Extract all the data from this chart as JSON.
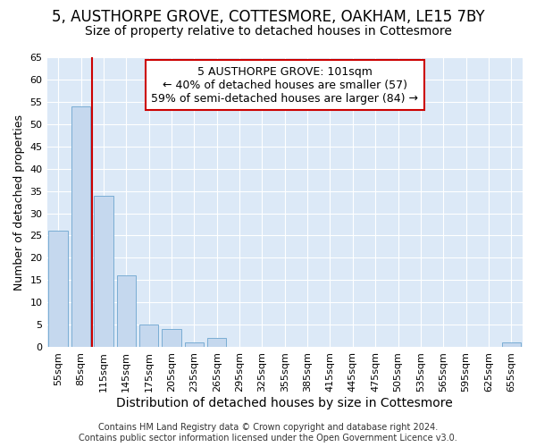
{
  "title": "5, AUSTHORPE GROVE, COTTESMORE, OAKHAM, LE15 7BY",
  "subtitle": "Size of property relative to detached houses in Cottesmore",
  "xlabel": "Distribution of detached houses by size in Cottesmore",
  "ylabel": "Number of detached properties",
  "categories": [
    "55sqm",
    "85sqm",
    "115sqm",
    "145sqm",
    "175sqm",
    "205sqm",
    "235sqm",
    "265sqm",
    "295sqm",
    "325sqm",
    "355sqm",
    "385sqm",
    "415sqm",
    "445sqm",
    "475sqm",
    "505sqm",
    "535sqm",
    "565sqm",
    "595sqm",
    "625sqm",
    "655sqm"
  ],
  "values": [
    26,
    54,
    34,
    16,
    5,
    4,
    1,
    2,
    0,
    0,
    0,
    0,
    0,
    0,
    0,
    0,
    0,
    0,
    0,
    0,
    1
  ],
  "bar_color": "#c5d8ee",
  "bar_edge_color": "#7aadd4",
  "vline_x": 1.5,
  "vline_color": "#cc0000",
  "ylim_max": 65,
  "yticks": [
    0,
    5,
    10,
    15,
    20,
    25,
    30,
    35,
    40,
    45,
    50,
    55,
    60,
    65
  ],
  "annotation_text": "5 AUSTHORPE GROVE: 101sqm\n← 40% of detached houses are smaller (57)\n59% of semi-detached houses are larger (84) →",
  "ann_box_edge_color": "#cc0000",
  "footer_line1": "Contains HM Land Registry data © Crown copyright and database right 2024.",
  "footer_line2": "Contains public sector information licensed under the Open Government Licence v3.0.",
  "fig_bg_color": "#ffffff",
  "plot_bg_color": "#dce9f7",
  "title_fontsize": 12,
  "subtitle_fontsize": 10,
  "ann_fontsize": 9,
  "footer_fontsize": 7,
  "ylabel_fontsize": 9,
  "xlabel_fontsize": 10,
  "tick_fontsize": 8,
  "grid_color": "#ffffff"
}
